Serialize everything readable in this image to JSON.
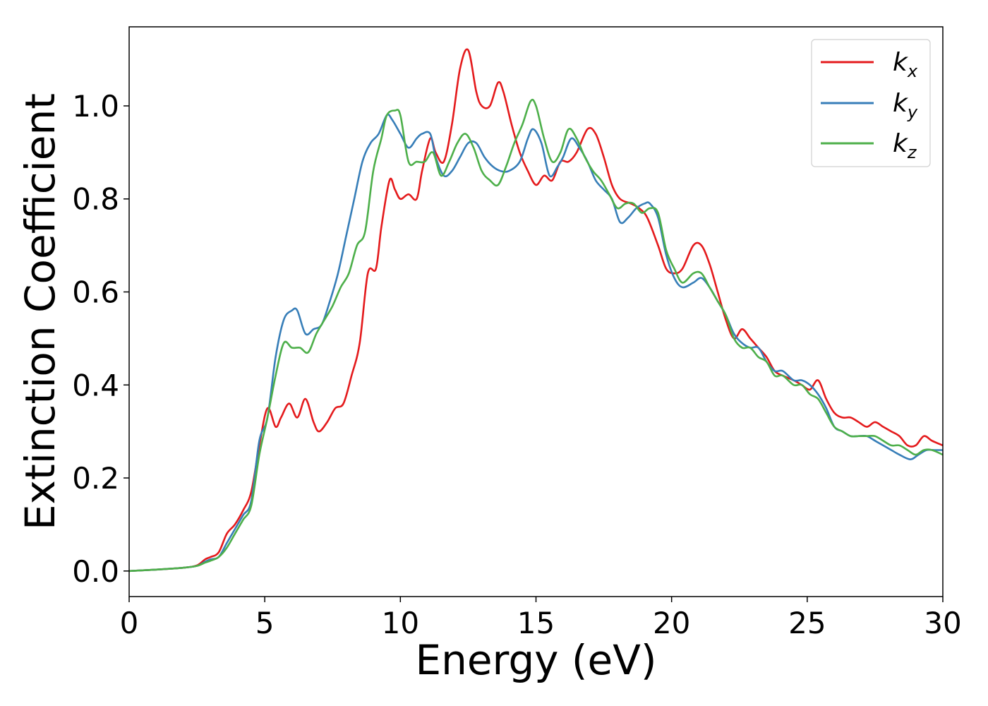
{
  "chart_data": {
    "type": "line",
    "title": "",
    "xlabel": "Energy (eV)",
    "ylabel": "Extinction Coefficient",
    "xlim": [
      0,
      30
    ],
    "ylim": [
      -0.055,
      1.17
    ],
    "xticks": [
      0,
      5,
      10,
      15,
      20,
      25,
      30
    ],
    "yticks": [
      0.0,
      0.2,
      0.4,
      0.6,
      0.8,
      1.0
    ],
    "grid": false,
    "legend_position": "top-right",
    "series": [
      {
        "name": "kx",
        "label_base": "k",
        "label_sub": "x",
        "color": "#e41a1c",
        "x": [
          0,
          1,
          2,
          2.5,
          2.8,
          3.0,
          3.3,
          3.6,
          3.9,
          4.2,
          4.5,
          4.8,
          5.1,
          5.4,
          5.6,
          5.9,
          6.2,
          6.5,
          6.8,
          7.0,
          7.3,
          7.6,
          7.9,
          8.2,
          8.5,
          8.8,
          9.1,
          9.3,
          9.6,
          9.8,
          10.0,
          10.3,
          10.6,
          10.8,
          11.1,
          11.3,
          11.6,
          11.9,
          12.2,
          12.5,
          12.8,
          13.0,
          13.3,
          13.6,
          13.8,
          14.1,
          14.4,
          14.7,
          15.0,
          15.3,
          15.6,
          15.9,
          16.2,
          16.5,
          16.9,
          17.2,
          17.5,
          17.8,
          18.1,
          18.5,
          18.8,
          19.1,
          19.5,
          19.8,
          20.1,
          20.4,
          20.8,
          21.1,
          21.4,
          21.7,
          22.0,
          22.3,
          22.6,
          22.9,
          23.2,
          23.5,
          23.8,
          24.1,
          24.5,
          24.8,
          25.1,
          25.4,
          25.7,
          26.0,
          26.3,
          26.6,
          26.9,
          27.2,
          27.5,
          27.8,
          28.1,
          28.4,
          28.7,
          29.0,
          29.3,
          29.6,
          30.0
        ],
        "y": [
          0.0,
          0.003,
          0.007,
          0.012,
          0.025,
          0.03,
          0.04,
          0.08,
          0.1,
          0.13,
          0.17,
          0.27,
          0.35,
          0.31,
          0.33,
          0.36,
          0.33,
          0.37,
          0.32,
          0.3,
          0.32,
          0.35,
          0.36,
          0.42,
          0.49,
          0.64,
          0.65,
          0.74,
          0.84,
          0.82,
          0.8,
          0.81,
          0.8,
          0.86,
          0.93,
          0.9,
          0.88,
          0.96,
          1.08,
          1.12,
          1.03,
          1.0,
          1.0,
          1.05,
          1.03,
          0.96,
          0.9,
          0.86,
          0.83,
          0.85,
          0.84,
          0.88,
          0.88,
          0.9,
          0.95,
          0.94,
          0.89,
          0.83,
          0.8,
          0.79,
          0.78,
          0.76,
          0.7,
          0.65,
          0.64,
          0.65,
          0.7,
          0.7,
          0.66,
          0.6,
          0.54,
          0.5,
          0.52,
          0.5,
          0.48,
          0.46,
          0.43,
          0.42,
          0.41,
          0.4,
          0.39,
          0.41,
          0.37,
          0.34,
          0.33,
          0.33,
          0.32,
          0.31,
          0.32,
          0.31,
          0.3,
          0.29,
          0.27,
          0.27,
          0.29,
          0.28,
          0.27
        ]
      },
      {
        "name": "ky",
        "label_base": "k",
        "label_sub": "y",
        "color": "#377eb8",
        "x": [
          0,
          1,
          2,
          2.5,
          2.8,
          3.0,
          3.3,
          3.6,
          3.9,
          4.2,
          4.5,
          4.8,
          5.1,
          5.4,
          5.7,
          6.0,
          6.2,
          6.5,
          6.8,
          7.1,
          7.4,
          7.7,
          8.0,
          8.3,
          8.6,
          8.9,
          9.2,
          9.5,
          9.7,
          10.0,
          10.3,
          10.6,
          10.8,
          11.1,
          11.3,
          11.6,
          11.9,
          12.2,
          12.5,
          12.8,
          13.1,
          13.4,
          13.7,
          14.0,
          14.4,
          14.7,
          14.9,
          15.2,
          15.5,
          15.8,
          16.0,
          16.3,
          16.6,
          16.9,
          17.2,
          17.5,
          17.8,
          18.1,
          18.4,
          18.7,
          19.0,
          19.2,
          19.5,
          19.8,
          20.1,
          20.4,
          20.8,
          21.1,
          21.4,
          21.7,
          22.0,
          22.3,
          22.6,
          22.9,
          23.2,
          23.5,
          23.8,
          24.1,
          24.5,
          24.8,
          25.1,
          25.4,
          25.7,
          26.0,
          26.3,
          26.6,
          26.9,
          27.2,
          27.5,
          27.8,
          28.1,
          28.4,
          28.8,
          29.1,
          29.4,
          29.7,
          30.0
        ],
        "y": [
          0.0,
          0.003,
          0.007,
          0.011,
          0.02,
          0.025,
          0.03,
          0.06,
          0.09,
          0.12,
          0.15,
          0.28,
          0.33,
          0.46,
          0.54,
          0.56,
          0.56,
          0.51,
          0.52,
          0.53,
          0.58,
          0.64,
          0.72,
          0.8,
          0.88,
          0.92,
          0.94,
          0.98,
          0.97,
          0.94,
          0.91,
          0.93,
          0.94,
          0.94,
          0.89,
          0.85,
          0.86,
          0.89,
          0.92,
          0.92,
          0.89,
          0.87,
          0.86,
          0.86,
          0.88,
          0.93,
          0.95,
          0.92,
          0.85,
          0.87,
          0.89,
          0.93,
          0.91,
          0.88,
          0.84,
          0.82,
          0.8,
          0.75,
          0.76,
          0.78,
          0.79,
          0.79,
          0.76,
          0.68,
          0.63,
          0.61,
          0.62,
          0.63,
          0.61,
          0.58,
          0.55,
          0.51,
          0.49,
          0.48,
          0.48,
          0.45,
          0.43,
          0.43,
          0.41,
          0.41,
          0.4,
          0.38,
          0.35,
          0.31,
          0.3,
          0.29,
          0.29,
          0.29,
          0.28,
          0.27,
          0.26,
          0.25,
          0.24,
          0.25,
          0.26,
          0.26,
          0.26
        ]
      },
      {
        "name": "kz",
        "label_base": "k",
        "label_sub": "z",
        "color": "#4daf4a",
        "x": [
          0,
          1,
          2,
          2.5,
          2.8,
          3.0,
          3.3,
          3.6,
          3.9,
          4.2,
          4.5,
          4.8,
          5.1,
          5.4,
          5.7,
          6.0,
          6.3,
          6.6,
          6.9,
          7.2,
          7.5,
          7.8,
          8.1,
          8.4,
          8.7,
          9.0,
          9.3,
          9.5,
          9.8,
          10.0,
          10.3,
          10.6,
          10.9,
          11.2,
          11.5,
          11.8,
          12.1,
          12.4,
          12.7,
          13.0,
          13.3,
          13.6,
          13.9,
          14.2,
          14.5,
          14.8,
          15.0,
          15.3,
          15.6,
          15.9,
          16.2,
          16.5,
          16.8,
          17.1,
          17.4,
          17.7,
          18.0,
          18.3,
          18.6,
          18.9,
          19.2,
          19.5,
          19.8,
          20.1,
          20.4,
          20.8,
          21.1,
          21.4,
          21.7,
          22.0,
          22.3,
          22.6,
          22.9,
          23.2,
          23.5,
          23.8,
          24.1,
          24.5,
          24.8,
          25.1,
          25.4,
          25.7,
          26.0,
          26.3,
          26.6,
          26.9,
          27.2,
          27.5,
          27.8,
          28.1,
          28.4,
          28.7,
          29.0,
          29.3,
          29.6,
          30.0
        ],
        "y": [
          0.0,
          0.003,
          0.007,
          0.011,
          0.018,
          0.022,
          0.03,
          0.05,
          0.08,
          0.11,
          0.14,
          0.25,
          0.33,
          0.42,
          0.49,
          0.48,
          0.48,
          0.47,
          0.51,
          0.54,
          0.57,
          0.61,
          0.64,
          0.7,
          0.73,
          0.86,
          0.93,
          0.98,
          0.99,
          0.98,
          0.88,
          0.88,
          0.88,
          0.9,
          0.85,
          0.88,
          0.92,
          0.94,
          0.91,
          0.86,
          0.84,
          0.83,
          0.87,
          0.92,
          0.96,
          1.01,
          1.0,
          0.93,
          0.88,
          0.9,
          0.95,
          0.93,
          0.89,
          0.86,
          0.84,
          0.81,
          0.78,
          0.79,
          0.79,
          0.77,
          0.78,
          0.77,
          0.69,
          0.65,
          0.62,
          0.64,
          0.64,
          0.61,
          0.58,
          0.55,
          0.5,
          0.48,
          0.48,
          0.46,
          0.45,
          0.42,
          0.42,
          0.4,
          0.4,
          0.38,
          0.37,
          0.34,
          0.31,
          0.3,
          0.29,
          0.29,
          0.29,
          0.29,
          0.28,
          0.27,
          0.27,
          0.26,
          0.25,
          0.26,
          0.26,
          0.25
        ]
      }
    ]
  }
}
